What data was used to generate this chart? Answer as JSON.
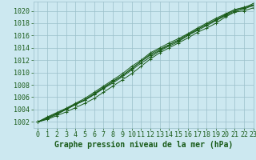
{
  "title": "Graphe pression niveau de la mer (hPa)",
  "background_color": "#cce8f0",
  "grid_color": "#9bbfca",
  "line_color": "#1a5c1a",
  "xlim": [
    -0.5,
    23
  ],
  "ylim": [
    1001.0,
    1021.5
  ],
  "yticks": [
    1002,
    1004,
    1006,
    1008,
    1010,
    1012,
    1014,
    1016,
    1018,
    1020
  ],
  "xticks": [
    0,
    1,
    2,
    3,
    4,
    5,
    6,
    7,
    8,
    9,
    10,
    11,
    12,
    13,
    14,
    15,
    16,
    17,
    18,
    19,
    20,
    21,
    22,
    23
  ],
  "series": [
    [
      1002.0,
      1002.4,
      1003.0,
      1003.6,
      1004.3,
      1005.0,
      1005.8,
      1006.8,
      1007.8,
      1008.8,
      1009.8,
      1011.0,
      1012.2,
      1013.2,
      1014.0,
      1014.8,
      1015.6,
      1016.5,
      1017.2,
      1018.0,
      1019.0,
      1019.8,
      1020.5,
      1021.2
    ],
    [
      1002.0,
      1002.6,
      1003.3,
      1004.0,
      1004.8,
      1005.5,
      1006.5,
      1007.5,
      1008.5,
      1009.5,
      1010.6,
      1011.8,
      1013.0,
      1013.8,
      1014.5,
      1015.3,
      1016.2,
      1017.0,
      1017.8,
      1018.6,
      1019.4,
      1020.2,
      1020.6,
      1021.0
    ],
    [
      1002.0,
      1002.8,
      1003.5,
      1004.2,
      1005.0,
      1005.8,
      1006.8,
      1007.8,
      1008.8,
      1009.8,
      1011.0,
      1012.0,
      1013.2,
      1014.0,
      1014.8,
      1015.5,
      1016.3,
      1017.2,
      1018.0,
      1018.8,
      1019.5,
      1020.2,
      1020.5,
      1020.8
    ],
    [
      1002.0,
      1002.5,
      1003.2,
      1004.0,
      1004.8,
      1005.5,
      1006.4,
      1007.4,
      1008.3,
      1009.3,
      1010.4,
      1011.5,
      1012.5,
      1013.5,
      1014.3,
      1015.0,
      1016.0,
      1016.8,
      1017.6,
      1018.4,
      1019.2,
      1019.8,
      1020.0,
      1020.5
    ],
    [
      1002.0,
      1002.7,
      1003.4,
      1004.1,
      1004.9,
      1005.6,
      1006.6,
      1007.6,
      1008.6,
      1009.5,
      1010.7,
      1011.8,
      1012.8,
      1013.6,
      1014.5,
      1015.2,
      1016.0,
      1017.0,
      1017.8,
      1018.5,
      1019.3,
      1020.0,
      1020.3,
      1020.9
    ]
  ],
  "tick_fontsize": 6,
  "title_fontsize": 7
}
